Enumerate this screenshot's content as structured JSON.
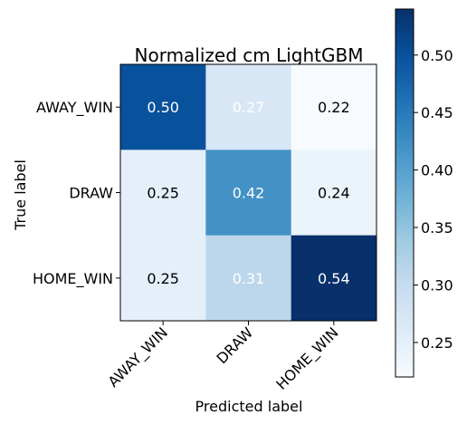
{
  "chart_data": {
    "type": "heatmap",
    "title": "Normalized cm LightGBM",
    "xlabel": "Predicted label",
    "ylabel": "True label",
    "x_categories": [
      "AWAY_WIN",
      "DRAW",
      "HOME_WIN"
    ],
    "y_categories": [
      "AWAY_WIN",
      "DRAW",
      "HOME_WIN"
    ],
    "values": [
      [
        0.5,
        0.27,
        0.22
      ],
      [
        0.25,
        0.42,
        0.24
      ],
      [
        0.25,
        0.31,
        0.54
      ]
    ],
    "colormap": "Blues",
    "color_range": [
      0.22,
      0.54
    ],
    "colorbar_ticks": [
      0.25,
      0.3,
      0.35,
      0.4,
      0.45,
      0.5
    ],
    "grid": false
  }
}
